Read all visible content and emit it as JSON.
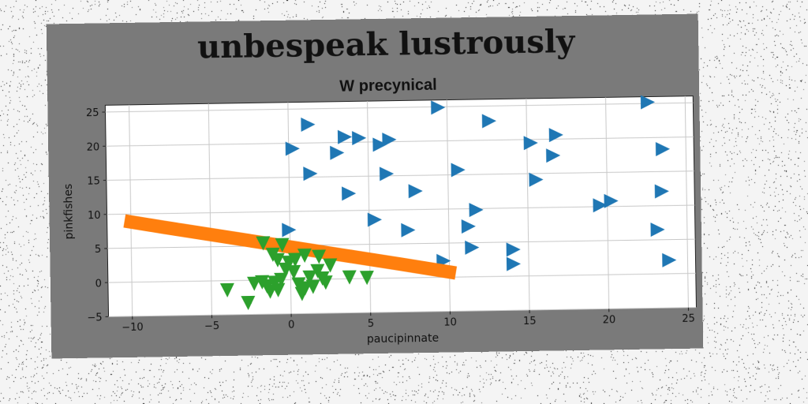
{
  "chart_data": {
    "type": "scatter",
    "title": "unbespeak lustrously",
    "subtitle": "W precynical",
    "xlabel": "paucipinnate",
    "ylabel": "pinkfishes",
    "xlim": [
      -11.5,
      25.5
    ],
    "ylim": [
      -5,
      26
    ],
    "x_ticks": [
      -10,
      -5,
      0,
      5,
      10,
      15,
      20,
      25
    ],
    "y_ticks": [
      -5,
      0,
      5,
      10,
      15,
      20,
      25
    ],
    "grid": true,
    "legend": "none",
    "series": [
      {
        "marker": "triangle-right",
        "color": "#1f77b4",
        "points": [
          [
            1.2,
            22.7
          ],
          [
            0.2,
            19.2
          ],
          [
            3.5,
            20.8
          ],
          [
            4.4,
            20.6
          ],
          [
            3.0,
            18.5
          ],
          [
            5.7,
            19.6
          ],
          [
            6.3,
            20.3
          ],
          [
            1.3,
            15.5
          ],
          [
            6.1,
            15.3
          ],
          [
            9.4,
            24.9
          ],
          [
            12.6,
            22.8
          ],
          [
            10.6,
            15.7
          ],
          [
            7.9,
            12.7
          ],
          [
            3.7,
            12.5
          ],
          [
            5.3,
            8.6
          ],
          [
            7.4,
            7.0
          ],
          [
            11.7,
            9.8
          ],
          [
            11.2,
            7.4
          ],
          [
            11.4,
            4.3
          ],
          [
            14.0,
            3.9
          ],
          [
            14.0,
            1.8
          ],
          [
            9.6,
            2.4
          ],
          [
            -0.1,
            7.3
          ],
          [
            15.2,
            19.5
          ],
          [
            16.6,
            17.6
          ],
          [
            16.8,
            20.6
          ],
          [
            15.5,
            14.1
          ],
          [
            19.5,
            10.2
          ],
          [
            20.2,
            10.8
          ],
          [
            22.6,
            25.2
          ],
          [
            23.5,
            18.3
          ],
          [
            23.4,
            12.1
          ],
          [
            23.1,
            6.5
          ],
          [
            23.8,
            2.0
          ]
        ]
      },
      {
        "marker": "line",
        "color": "#ff7f0e",
        "points": [
          [
            -10.4,
            9.0
          ],
          [
            -8.0,
            8.0
          ],
          [
            -5.0,
            6.8
          ],
          [
            -2.0,
            5.6
          ],
          [
            1.0,
            4.4
          ],
          [
            4.0,
            3.2
          ],
          [
            7.0,
            2.0
          ],
          [
            10.4,
            0.6
          ]
        ]
      },
      {
        "marker": "triangle-down",
        "color": "#2ca02c",
        "points": [
          [
            -4.0,
            -1.3
          ],
          [
            -2.7,
            -3.2
          ],
          [
            -2.3,
            -0.4
          ],
          [
            -1.8,
            -0.2
          ],
          [
            -1.5,
            -0.8
          ],
          [
            -1.3,
            -1.6
          ],
          [
            -1.0,
            -0.3
          ],
          [
            -0.8,
            -1.4
          ],
          [
            -0.6,
            0.1
          ],
          [
            -1.1,
            3.8
          ],
          [
            -0.3,
            1.6
          ],
          [
            -0.1,
            2.6
          ],
          [
            0.2,
            1.2
          ],
          [
            0.5,
            -0.6
          ],
          [
            0.7,
            -2.0
          ],
          [
            0.9,
            -1.2
          ],
          [
            1.2,
            0.4
          ],
          [
            1.4,
            -1.0
          ],
          [
            1.7,
            1.3
          ],
          [
            2.0,
            0.2
          ],
          [
            2.2,
            -0.4
          ],
          [
            -0.5,
            5.2
          ],
          [
            1.8,
            3.4
          ],
          [
            2.5,
            2.1
          ],
          [
            3.7,
            0.3
          ],
          [
            4.8,
            0.2
          ],
          [
            -1.7,
            5.5
          ],
          [
            0.9,
            3.6
          ],
          [
            -0.8,
            3.0
          ],
          [
            0.3,
            3.0
          ]
        ]
      }
    ]
  }
}
